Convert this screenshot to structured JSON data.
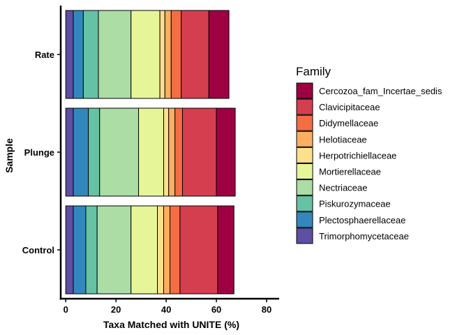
{
  "chart_data": {
    "type": "bar",
    "orientation": "horizontal",
    "stacked": true,
    "categories": [
      "Control",
      "Plunge",
      "Rate"
    ],
    "xlabel": "Taxa Matched with UNITE (%)",
    "ylabel": "Sample",
    "xlim": [
      -2,
      85
    ],
    "xticks": [
      0,
      20,
      40,
      60,
      80
    ],
    "grid": false,
    "legend": {
      "title": "Family",
      "position": "right"
    },
    "series": [
      {
        "name": "Trimorphomycetaceae",
        "color": "#5E4FA2",
        "values": [
          3.0,
          3.0,
          3.0
        ]
      },
      {
        "name": "Plectosphaerellaceae",
        "color": "#3288BD",
        "values": [
          5.0,
          6.0,
          4.0
        ]
      },
      {
        "name": "Piskurozymaceae",
        "color": "#66C2A5",
        "values": [
          4.5,
          4.5,
          6.0
        ]
      },
      {
        "name": "Nectriaceae",
        "color": "#ABDDA4",
        "values": [
          13.5,
          15.5,
          13.0
        ]
      },
      {
        "name": "Mortierellaceae",
        "color": "#E6F598",
        "values": [
          10.5,
          10.0,
          11.5
        ]
      },
      {
        "name": "Herpotrichiellaceae",
        "color": "#FEE08B",
        "values": [
          2.5,
          2.0,
          2.0
        ]
      },
      {
        "name": "Helotiaceae",
        "color": "#FDAE61",
        "values": [
          2.5,
          2.5,
          2.5
        ]
      },
      {
        "name": "Didymellaceae",
        "color": "#F46D43",
        "values": [
          4.0,
          3.0,
          4.0
        ]
      },
      {
        "name": "Clavicipitaceae",
        "color": "#D53E4F",
        "values": [
          15.0,
          13.5,
          11.0
        ]
      },
      {
        "name": "Cercozoa_fam_Incertae_sedis",
        "color": "#9E0142",
        "values": [
          6.5,
          7.5,
          8.0
        ]
      }
    ]
  }
}
